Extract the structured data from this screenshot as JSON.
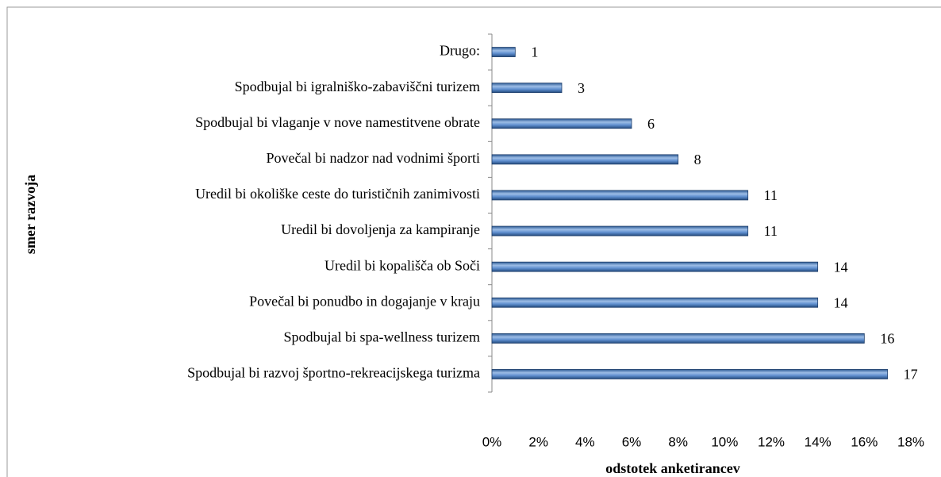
{
  "chart_data": {
    "type": "bar",
    "orientation": "horizontal",
    "categories": [
      "Drugo:",
      "Spodbujal bi igralniško-zabaviščni turizem",
      "Spodbujal bi vlaganje v nove namestitvene obrate",
      "Povečal bi nadzor nad vodnimi športi",
      "Uredil bi okoliške ceste do turističnih zanimivosti",
      "Uredil bi dovoljenja za kampiranje",
      "Uredil bi kopališča ob Soči",
      "Povečal bi ponudbo in dogajanje v kraju",
      "Spodbujal bi spa-wellness turizem",
      "Spodbujal bi razvoj športno-rekreacijskega turizma"
    ],
    "values": [
      1,
      3,
      6,
      8,
      11,
      11,
      14,
      14,
      16,
      17
    ],
    "color": "#4f81bd",
    "xlim": [
      0,
      18
    ],
    "xticks": [
      {
        "value": 0,
        "label": "0%"
      },
      {
        "value": 2,
        "label": "2%"
      },
      {
        "value": 4,
        "label": "4%"
      },
      {
        "value": 6,
        "label": "6%"
      },
      {
        "value": 8,
        "label": "8%"
      },
      {
        "value": 10,
        "label": "10%"
      },
      {
        "value": 12,
        "label": "12%"
      },
      {
        "value": 14,
        "label": "14%"
      },
      {
        "value": 16,
        "label": "16%"
      },
      {
        "value": 18,
        "label": "18%"
      }
    ],
    "xlabel": "odstotek anketirancev",
    "ylabel": "smer razvoja",
    "grid": false
  }
}
